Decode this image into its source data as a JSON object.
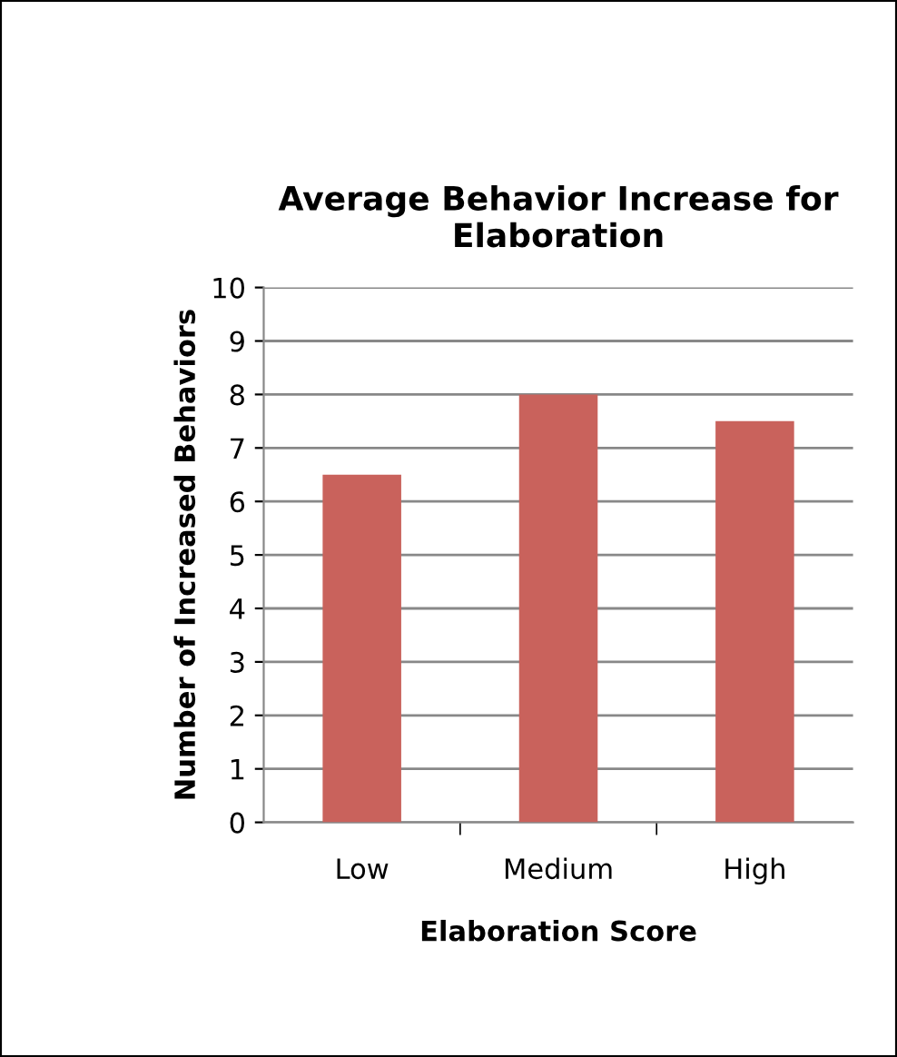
{
  "chart_data": {
    "type": "bar",
    "title": "Average Behavior Increase for Elaboration",
    "xlabel": "Elaboration Score",
    "ylabel": "Number of Increased Behaviors",
    "categories": [
      "Low",
      "Medium",
      "High"
    ],
    "values": [
      6.5,
      8,
      7.5
    ],
    "color": "#c9625c",
    "ylim": [
      0,
      10
    ],
    "yticks": [
      0,
      1,
      2,
      3,
      4,
      5,
      6,
      7,
      8,
      9,
      10
    ],
    "grid": "y",
    "legend": false
  }
}
